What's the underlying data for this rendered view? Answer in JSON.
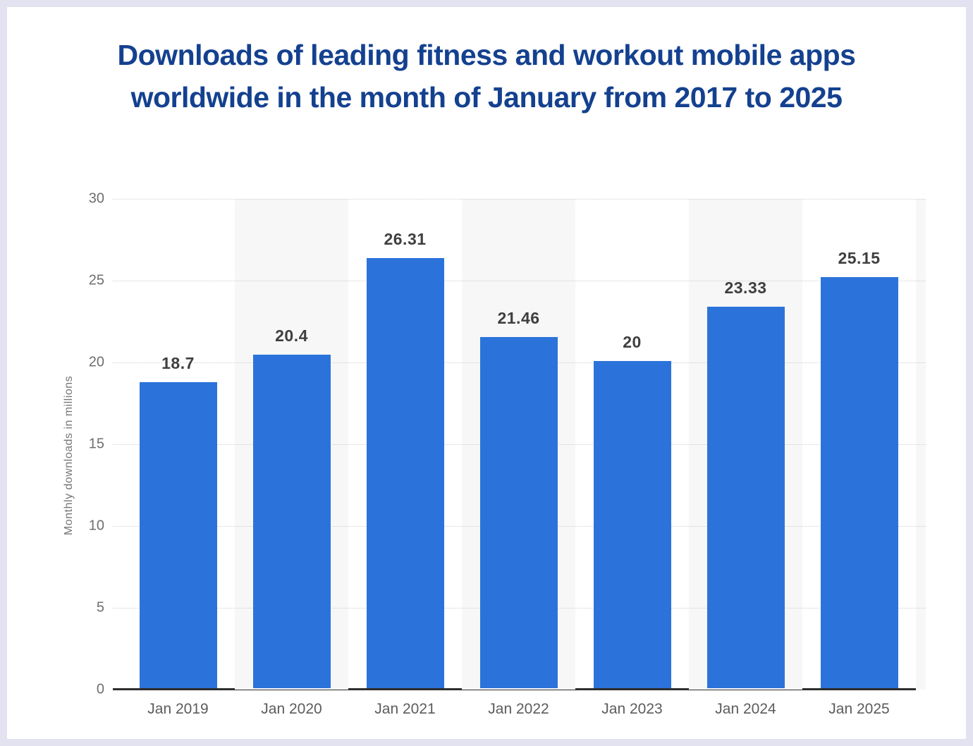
{
  "frame": {
    "border_color": "#e3e2f1",
    "background_color": "#ffffff"
  },
  "title": {
    "text": "Downloads of leading fitness and workout mobile apps worldwide in the month of January from 2017 to 2025",
    "color": "#14418f"
  },
  "chart_data": {
    "type": "bar",
    "title": "Downloads of leading fitness and workout mobile apps worldwide in the month of January from 2017 to 2025",
    "categories": [
      "Jan 2019",
      "Jan 2020",
      "Jan 2021",
      "Jan 2022",
      "Jan 2023",
      "Jan 2024",
      "Jan 2025"
    ],
    "values": [
      18.7,
      20.4,
      26.31,
      21.46,
      20,
      23.33,
      25.15
    ],
    "value_labels": [
      "18.7",
      "20.4",
      "26.31",
      "21.46",
      "20",
      "23.33",
      "25.15"
    ],
    "xlabel": "",
    "ylabel": "Monthly downloads in millions",
    "ylim": [
      0,
      30
    ],
    "yticks": [
      0,
      5,
      10,
      15,
      20,
      25,
      30
    ],
    "grid": "horizontal dotted gridlines at each y tick",
    "legend": "none",
    "plot_bands": "alternating light-gray vertical column stripes behind categories 2, 4, 6 plus right-edge sliver",
    "striped_columns": [
      1,
      3,
      5
    ],
    "colors": {
      "bar": "#2b73da",
      "stripe": "#f7f7f7",
      "gridline": "#cfcfcf",
      "axis_line": "#2e2e2e",
      "y_tick_label": "#6e6e6e",
      "x_tick_label": "#5c5c5c",
      "value_label": "#3f3f3f",
      "y_axis_title": "#767676"
    }
  }
}
